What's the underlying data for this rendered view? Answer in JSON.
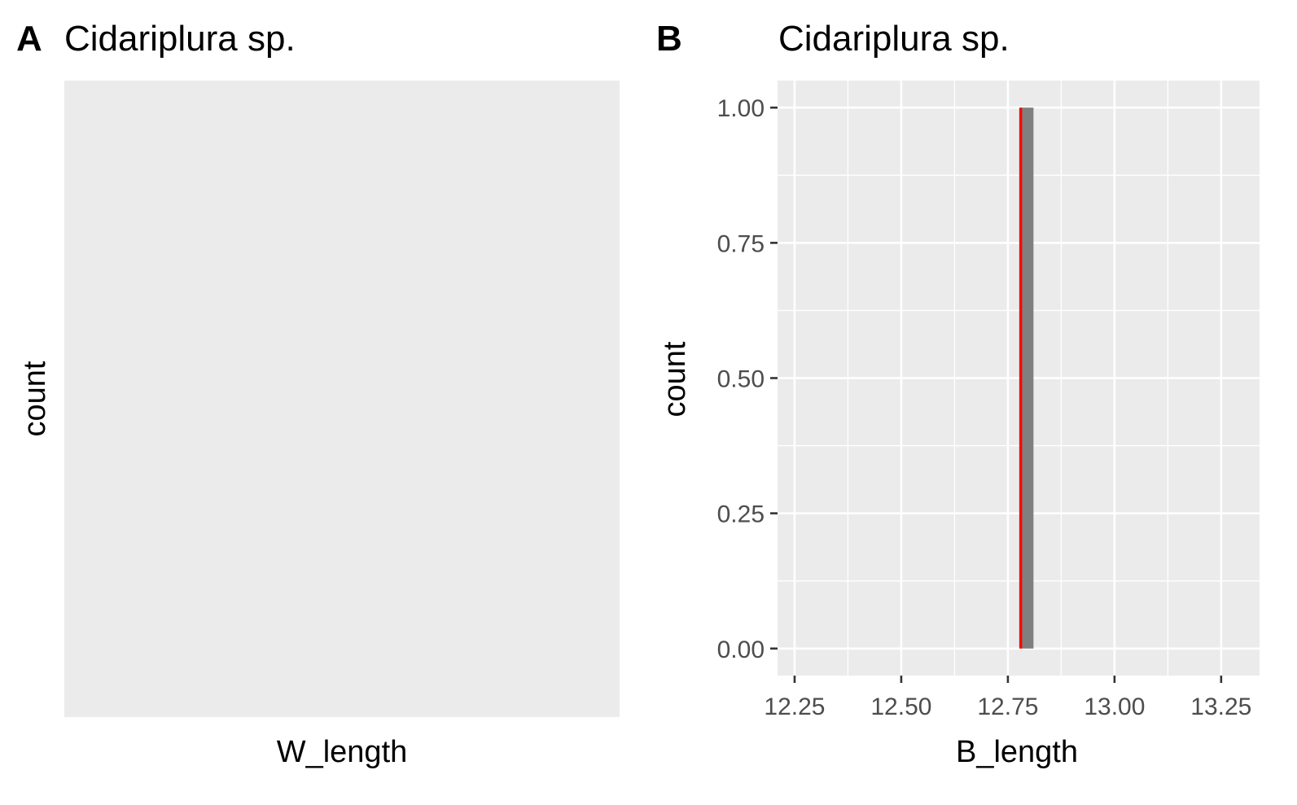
{
  "chart_data": [
    {
      "panel_label": "A",
      "type": "bar",
      "title": "Cidariplura sp.",
      "xlabel": "W_length",
      "ylabel": "count",
      "categories": [],
      "values": [],
      "x_ticks": [],
      "y_ticks": [],
      "grid": false,
      "background": "#ebebeb"
    },
    {
      "panel_label": "B",
      "type": "bar",
      "title": "Cidariplura sp.",
      "xlabel": "B_length",
      "ylabel": "count",
      "xlim": [
        12.21,
        13.34
      ],
      "ylim": [
        -0.05,
        1.05
      ],
      "x_ticks": [
        "12.25",
        "12.50",
        "12.75",
        "13.00",
        "13.25"
      ],
      "y_ticks": [
        "0.00",
        "0.25",
        "0.50",
        "0.75",
        "1.00"
      ],
      "bins": [
        {
          "x_start": 12.78,
          "x_end": 12.81,
          "count": 1
        }
      ],
      "reference_line": {
        "x": 12.78,
        "color": "#ff0000"
      },
      "bar_color": "#7f7f7f",
      "background": "#ebebeb",
      "grid": true
    }
  ]
}
